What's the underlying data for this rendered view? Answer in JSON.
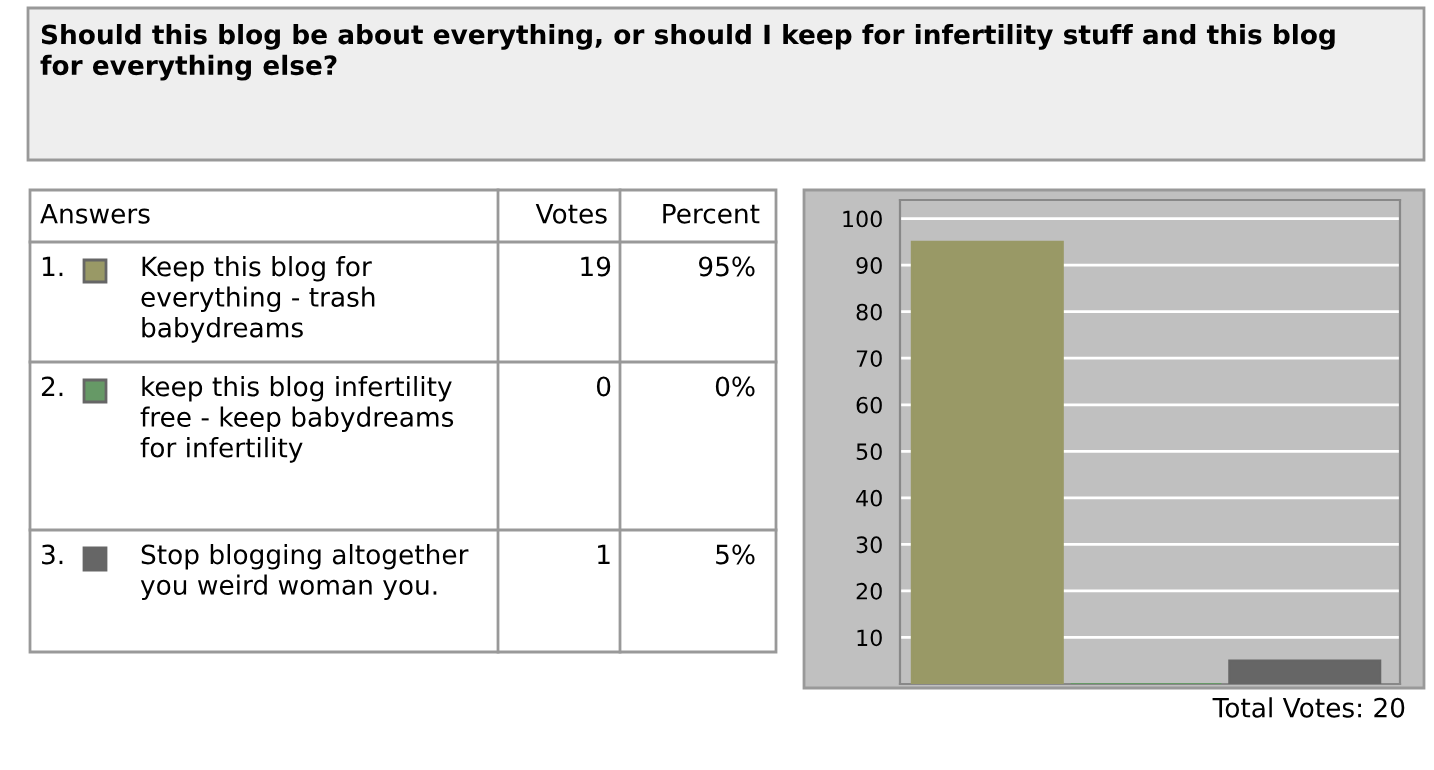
{
  "chart_data": {
    "type": "bar",
    "title": "Should this blog be about everything, or should I keep for infertility stuff and this blog for everything else?",
    "categories": [
      null,
      null,
      null
    ],
    "values": [
      95,
      0,
      5
    ],
    "colors": [
      "#999966",
      "#669966",
      "#666666"
    ],
    "ylim": [
      0,
      104
    ],
    "yticks": [
      10,
      20,
      30,
      40,
      50,
      60,
      70,
      80,
      90,
      100
    ],
    "grid": "y",
    "annotations": [
      "Answers",
      "Votes",
      "Percent",
      "1.",
      "2.",
      "3.",
      "19",
      "0",
      "1",
      "Total Votes: 20",
      "Keep this blog for everything - trash babydreams",
      "keep this blog infertility free - keep babydreams for infertility",
      "Stop blogging altogether you weird woman you.",
      "95%",
      "0%",
      "5%"
    ]
  }
}
